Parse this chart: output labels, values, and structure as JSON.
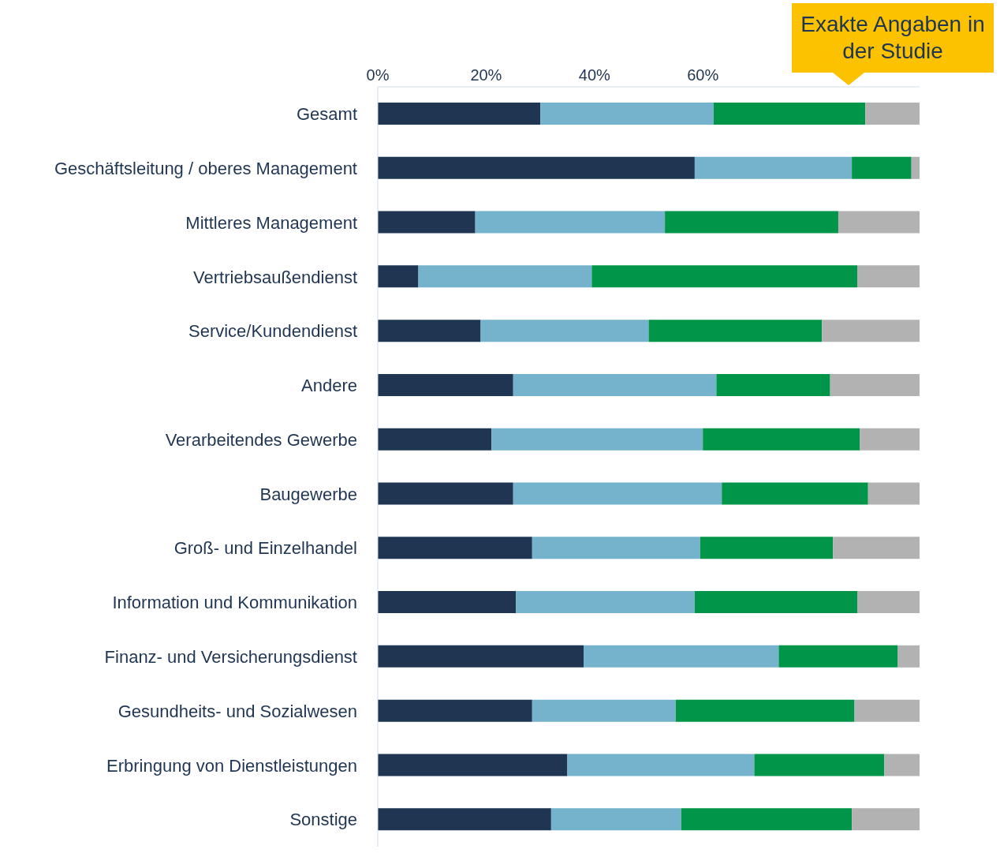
{
  "chart_data": {
    "type": "bar",
    "orientation": "horizontal",
    "stacked": true,
    "categories": [
      "Gesamt",
      "Geschäftsleitung / oberes Management",
      "Mittleres Management",
      "Vertriebsaußendienst",
      "Service/Kundendienst",
      "Andere",
      "Verarbeitendes Gewerbe",
      "Baugewerbe",
      "Groß- und Einzelhandel",
      "Information und Kommunikation",
      "Finanz- und Versicherungsdienst",
      "Gesundheits- und Sozialwesen",
      "Erbringung von Dienstleistungen",
      "Sonstige"
    ],
    "series": [
      {
        "color": "#1f3552",
        "values": [
          30,
          58.5,
          18,
          7.5,
          19,
          25,
          21,
          25,
          28.5,
          25.5,
          38,
          28.5,
          35,
          32
        ]
      },
      {
        "color": "#74b3cb",
        "values": [
          32,
          29,
          35,
          32,
          31,
          37.5,
          39,
          38.5,
          31,
          33,
          36,
          26.5,
          34.5,
          24
        ]
      },
      {
        "color": "#009548",
        "values": [
          28,
          11,
          32,
          49,
          32,
          21,
          29,
          27,
          24.5,
          30,
          22,
          33,
          24,
          31.5
        ]
      },
      {
        "color": "#b2b2b2",
        "values": [
          10,
          1.5,
          15,
          11.5,
          18,
          16.5,
          11,
          9.5,
          16,
          11.5,
          4,
          12,
          6.5,
          12.5
        ]
      }
    ],
    "xlim": [
      0,
      100
    ],
    "xticks": [
      {
        "value": 0,
        "label": "0%"
      },
      {
        "value": 20,
        "label": "20%"
      },
      {
        "value": 40,
        "label": "40%"
      },
      {
        "value": 60,
        "label": "60%"
      }
    ],
    "annotations": [
      "Exakte Angaben in der Studie"
    ]
  }
}
